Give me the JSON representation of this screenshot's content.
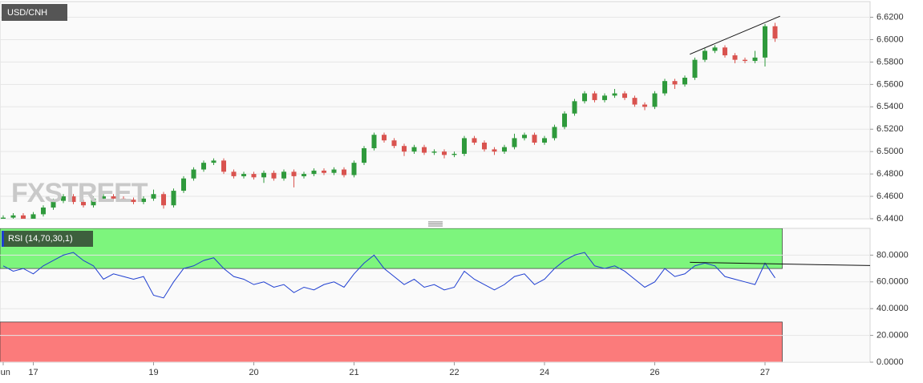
{
  "chart_data": [
    {
      "type": "candlestick",
      "title": "USD/CNH",
      "watermark": "FXSTREET",
      "up_color": "#2f9a3c",
      "down_color": "#d9534f",
      "series": [
        {
          "open": [
            6.439,
            6.441,
            6.443,
            6.44,
            6.444,
            6.45,
            6.456,
            6.46,
            6.455,
            6.452,
            6.458,
            6.46,
            6.458,
            6.457,
            6.455,
            6.458,
            6.462,
            6.452,
            6.465,
            6.476,
            6.484,
            6.49,
            6.492,
            6.482,
            6.478,
            6.48,
            6.477,
            6.481,
            6.476,
            6.482,
            6.478,
            6.48,
            6.483,
            6.481,
            6.484,
            6.479,
            6.49,
            6.503,
            6.515,
            6.51,
            6.505,
            6.5,
            6.504,
            6.499,
            6.5,
            6.497,
            6.498,
            6.512,
            6.508,
            6.502,
            6.5,
            6.504,
            6.512,
            6.515,
            6.508,
            6.512,
            6.522,
            6.534,
            6.545,
            6.552,
            6.546,
            6.55,
            6.552,
            6.548,
            6.542,
            6.54,
            6.552,
            6.563,
            6.56,
            6.566,
            6.582,
            6.59,
            6.593,
            6.586,
            6.582,
            6.581,
            6.584,
            6.612
          ],
          "high": [
            6.443,
            6.445,
            6.445,
            6.446,
            6.452,
            6.458,
            6.462,
            6.462,
            6.457,
            6.46,
            6.462,
            6.462,
            6.46,
            6.459,
            6.46,
            6.466,
            6.464,
            6.467,
            6.478,
            6.486,
            6.492,
            6.494,
            6.494,
            6.484,
            6.482,
            6.482,
            6.483,
            6.483,
            6.484,
            6.484,
            6.482,
            6.485,
            6.485,
            6.486,
            6.486,
            6.492,
            6.505,
            6.517,
            6.517,
            6.512,
            6.507,
            6.506,
            6.506,
            6.502,
            6.502,
            6.5,
            6.514,
            6.514,
            6.51,
            6.504,
            6.506,
            6.516,
            6.517,
            6.517,
            6.514,
            6.524,
            6.536,
            6.547,
            6.554,
            6.554,
            6.552,
            6.556,
            6.554,
            6.55,
            6.544,
            6.554,
            6.565,
            6.565,
            6.568,
            6.584,
            6.592,
            6.595,
            6.595,
            6.588,
            6.584,
            6.59,
            6.614,
            6.615
          ],
          "low": [
            6.437,
            6.439,
            6.438,
            6.438,
            6.442,
            6.448,
            6.454,
            6.453,
            6.45,
            6.45,
            6.456,
            6.456,
            6.455,
            6.453,
            6.453,
            6.456,
            6.449,
            6.45,
            6.463,
            6.474,
            6.482,
            6.488,
            6.48,
            6.476,
            6.476,
            6.475,
            6.472,
            6.474,
            6.474,
            6.468,
            6.476,
            6.478,
            6.479,
            6.479,
            6.477,
            6.477,
            6.488,
            6.501,
            6.508,
            6.503,
            6.496,
            6.498,
            6.497,
            6.497,
            6.494,
            6.495,
            6.496,
            6.506,
            6.5,
            6.497,
            6.498,
            6.502,
            6.51,
            6.506,
            6.506,
            6.51,
            6.52,
            6.532,
            6.543,
            6.544,
            6.544,
            6.548,
            6.546,
            6.54,
            6.537,
            6.538,
            6.55,
            6.556,
            6.558,
            6.564,
            6.58,
            6.588,
            6.584,
            6.579,
            6.579,
            6.579,
            6.576,
            6.598
          ],
          "close": [
            6.441,
            6.443,
            6.44,
            6.444,
            6.45,
            6.456,
            6.46,
            6.455,
            6.452,
            6.458,
            6.46,
            6.458,
            6.457,
            6.455,
            6.458,
            6.462,
            6.452,
            6.465,
            6.476,
            6.484,
            6.49,
            6.492,
            6.482,
            6.478,
            6.48,
            6.477,
            6.481,
            6.476,
            6.482,
            6.478,
            6.48,
            6.483,
            6.481,
            6.484,
            6.479,
            6.49,
            6.503,
            6.515,
            6.51,
            6.505,
            6.5,
            6.504,
            6.499,
            6.5,
            6.497,
            6.498,
            6.512,
            6.508,
            6.502,
            6.5,
            6.504,
            6.512,
            6.515,
            6.508,
            6.512,
            6.522,
            6.534,
            6.545,
            6.552,
            6.546,
            6.55,
            6.552,
            6.548,
            6.542,
            6.54,
            6.552,
            6.563,
            6.56,
            6.566,
            6.582,
            6.59,
            6.593,
            6.586,
            6.582,
            6.581,
            6.584,
            6.612,
            6.601
          ]
        }
      ],
      "ylim": [
        6.44,
        6.634
      ],
      "yticks": [
        {
          "value": 6.44,
          "label": "6.4400"
        },
        {
          "value": 6.46,
          "label": "6.4600"
        },
        {
          "value": 6.48,
          "label": "6.4800"
        },
        {
          "value": 6.5,
          "label": "6.5000"
        },
        {
          "value": 6.52,
          "label": "6.5200"
        },
        {
          "value": 6.54,
          "label": "6.5400"
        },
        {
          "value": 6.56,
          "label": "6.5600"
        },
        {
          "value": 6.58,
          "label": "6.5800"
        },
        {
          "value": 6.6,
          "label": "6.6000"
        },
        {
          "value": 6.62,
          "label": "6.6200"
        }
      ],
      "grid": true,
      "trendline": {
        "x": [
          68.5,
          77.5
        ],
        "y": [
          6.587,
          6.621
        ]
      }
    },
    {
      "type": "line",
      "label": "RSI (14,70,30,1)",
      "categories": [
        "Jun",
        null,
        null,
        "17",
        null,
        null,
        null,
        null,
        null,
        null,
        null,
        null,
        null,
        null,
        null,
        "19",
        null,
        null,
        null,
        null,
        null,
        null,
        null,
        null,
        null,
        "20",
        null,
        null,
        null,
        null,
        null,
        null,
        null,
        null,
        null,
        "21",
        null,
        null,
        null,
        null,
        null,
        null,
        null,
        null,
        null,
        "22",
        null,
        null,
        null,
        null,
        null,
        null,
        null,
        null,
        "24",
        null,
        null,
        null,
        null,
        null,
        null,
        null,
        null,
        null,
        null,
        "26",
        null,
        null,
        null,
        null,
        null,
        null,
        null,
        null,
        null,
        null,
        "27",
        null
      ],
      "series": [
        {
          "color": "#1f3fd1",
          "values": [
            72,
            68,
            70,
            66,
            72,
            76,
            80,
            82,
            76,
            72,
            62,
            66,
            64,
            62,
            64,
            50,
            48,
            60,
            70,
            72,
            76,
            78,
            70,
            64,
            62,
            58,
            60,
            56,
            58,
            52,
            56,
            54,
            58,
            60,
            56,
            66,
            74,
            80,
            70,
            64,
            58,
            62,
            56,
            58,
            54,
            56,
            68,
            62,
            58,
            54,
            58,
            64,
            66,
            58,
            62,
            70,
            76,
            80,
            82,
            72,
            70,
            72,
            68,
            62,
            56,
            60,
            70,
            64,
            66,
            72,
            74,
            72,
            64,
            62,
            60,
            58,
            74,
            63
          ]
        }
      ],
      "overbought": 70,
      "oversold": 30,
      "overbought_color": "#7df57d",
      "oversold_color": "#fb7b7b",
      "ylim": [
        0,
        100
      ],
      "yticks": [
        {
          "value": 0,
          "label": "0.0000"
        },
        {
          "value": 20,
          "label": "20.0000"
        },
        {
          "value": 40,
          "label": "40.0000"
        },
        {
          "value": 60,
          "label": "60.0000"
        },
        {
          "value": 80,
          "label": "80.0000"
        }
      ],
      "grid": true,
      "trendline": {
        "x": [
          68.5,
          86.5
        ],
        "y": [
          74.6,
          72.2
        ]
      }
    }
  ]
}
